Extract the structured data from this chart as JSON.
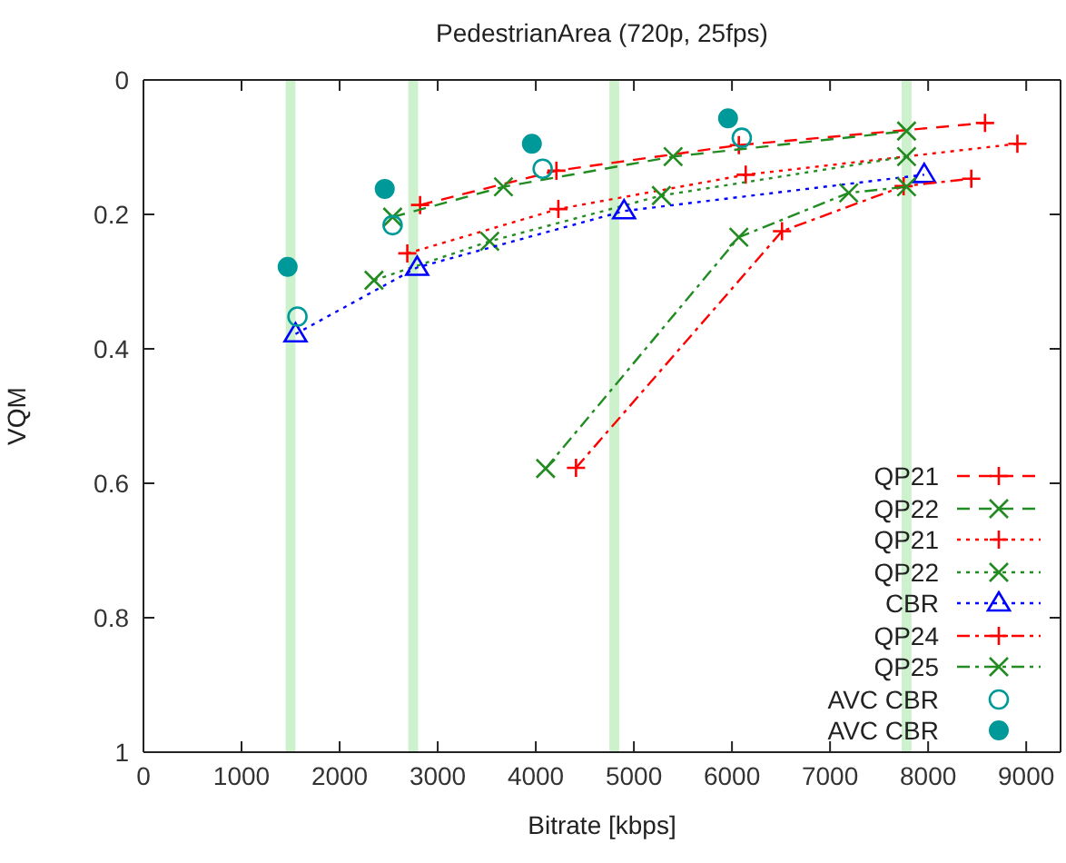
{
  "chart_data": {
    "type": "line",
    "title": "PedestrianArea (720p, 25fps)",
    "xlabel": "Bitrate [kbps]",
    "ylabel": "VQM",
    "xlim": [
      0,
      9350
    ],
    "xticks": [
      0,
      1000,
      2000,
      3000,
      4000,
      5000,
      6000,
      7000,
      8000,
      9000
    ],
    "ylim": [
      1,
      0
    ],
    "yticks": [
      0,
      0.2,
      0.4,
      0.6,
      0.8,
      1
    ],
    "legend": "bottom right",
    "bands": [
      {
        "axis": "x",
        "from": 1450,
        "to": 1550,
        "color": "#c8eec8"
      },
      {
        "axis": "x",
        "from": 2700,
        "to": 2800,
        "color": "#c8eec8"
      },
      {
        "axis": "x",
        "from": 4750,
        "to": 4850,
        "color": "#c8eec8"
      },
      {
        "axis": "x",
        "from": 7730,
        "to": 7830,
        "color": "#c8eec8"
      }
    ],
    "series": [
      {
        "name": "QP21",
        "color": "#ff0000",
        "marker": "plus",
        "line_style": "dashed",
        "x": [
          2820,
          4210,
          6070,
          8580
        ],
        "values": [
          0.186,
          0.135,
          0.097,
          0.064
        ]
      },
      {
        "name": "QP22",
        "color": "#228b22",
        "marker": "cross",
        "line_style": "dashed",
        "x": [
          2540,
          3670,
          5400,
          7780
        ],
        "values": [
          0.204,
          0.159,
          0.114,
          0.076
        ]
      },
      {
        "name": "QP21",
        "color": "#ff0000",
        "marker": "plus",
        "line_style": "dotted",
        "x": [
          2690,
          4230,
          6140,
          8910
        ],
        "values": [
          0.258,
          0.192,
          0.141,
          0.095
        ]
      },
      {
        "name": "QP22",
        "color": "#228b22",
        "marker": "cross",
        "line_style": "dotted",
        "x": [
          2350,
          3530,
          5280,
          7780
        ],
        "values": [
          0.298,
          0.24,
          0.172,
          0.114
        ]
      },
      {
        "name": "CBR",
        "color": "#0000ff",
        "marker": "triangle",
        "line_style": "dotted",
        "x": [
          1550,
          2790,
          4900,
          7960
        ],
        "values": [
          0.378,
          0.279,
          0.195,
          0.141
        ]
      },
      {
        "name": "QP24",
        "color": "#ff0000",
        "marker": "plus",
        "line_style": "dashdot",
        "x": [
          4410,
          6510,
          7750,
          8440
        ],
        "values": [
          0.577,
          0.225,
          0.158,
          0.147
        ]
      },
      {
        "name": "QP25",
        "color": "#228b22",
        "marker": "cross",
        "line_style": "dashdot",
        "x": [
          4100,
          6070,
          7190,
          7780
        ],
        "values": [
          0.578,
          0.234,
          0.168,
          0.159
        ]
      },
      {
        "name": "AVC CBR",
        "type": "scatter",
        "color": "#009999",
        "marker": "circle",
        "x": [
          1570,
          2540,
          4070,
          6100
        ],
        "values": [
          0.352,
          0.216,
          0.132,
          0.086
        ]
      },
      {
        "name": "AVC CBR",
        "type": "scatter",
        "color": "#009999",
        "marker": "filled circle",
        "x": [
          1470,
          2460,
          3960,
          5960
        ],
        "values": [
          0.278,
          0.162,
          0.095,
          0.057
        ]
      }
    ]
  }
}
